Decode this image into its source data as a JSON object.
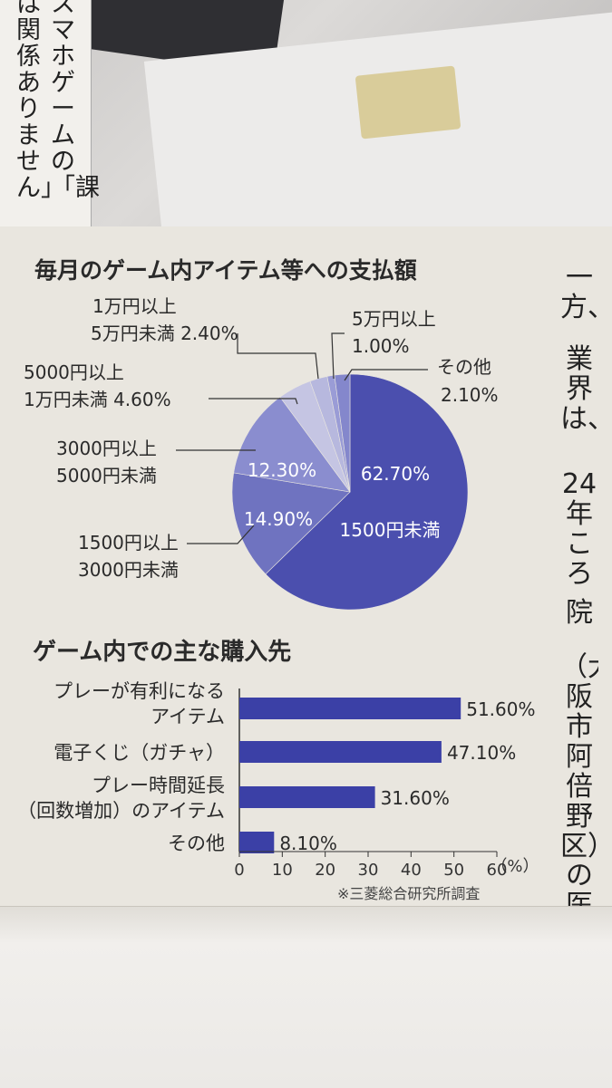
{
  "caption_columns": [
    "スマホゲームの「課",
    "は関係ありません」"
  ],
  "side_text": [
    "一方、",
    "業界は、",
    "24年ころ",
    "院",
    "（大阪市阿倍野区）",
    "の医"
  ],
  "chart_data": [
    {
      "type": "pie",
      "title": "毎月のゲーム内アイテム等への支払額",
      "slices": [
        {
          "label": "1500円未満",
          "value": 62.7,
          "display": "62.70%",
          "color": "#4b4fae"
        },
        {
          "label": "1500円以上 3000円未満",
          "label_lines": [
            "1500円以上",
            "3000円未満"
          ],
          "value": 14.9,
          "display": "14.90%",
          "color": "#6f73c0"
        },
        {
          "label": "3000円以上 5000円未満",
          "label_lines": [
            "3000円以上",
            "5000円未満"
          ],
          "value": 12.3,
          "display": "12.30%",
          "color": "#8a8dcf"
        },
        {
          "label": "5000円以上 1万円未満",
          "label_lines": [
            "5000円以上",
            "1万円未満 4.60%"
          ],
          "value": 4.6,
          "display": "4.60%",
          "color": "#c5c5e3"
        },
        {
          "label": "1万円以上 5万円未満",
          "label_lines": [
            "1万円以上",
            "5万円未満 2.40%"
          ],
          "value": 2.4,
          "display": "2.40%",
          "color": "#b7b8de"
        },
        {
          "label": "5万円以上",
          "label_lines": [
            "5万円以上",
            "1.00%"
          ],
          "value": 1.0,
          "display": "1.00%",
          "color": "#9a9cd6"
        },
        {
          "label": "その他",
          "label_lines": [
            "その他",
            "2.10%"
          ],
          "value": 2.1,
          "display": "2.10%",
          "color": "#8487cc"
        }
      ]
    },
    {
      "type": "bar",
      "orientation": "horizontal",
      "title": "ゲーム内での主な購入先",
      "categories": [
        {
          "label_lines": [
            "プレーが有利になる",
            "アイテム"
          ],
          "value": 51.6,
          "display": "51.60%"
        },
        {
          "label_lines": [
            "電子くじ（ガチャ）"
          ],
          "value": 47.1,
          "display": "47.10%"
        },
        {
          "label_lines": [
            "プレー時間延長",
            "（回数増加）のアイテム"
          ],
          "value": 31.6,
          "display": "31.60%"
        },
        {
          "label_lines": [
            "その他"
          ],
          "value": 8.1,
          "display": "8.10%"
        }
      ],
      "xlim": [
        0,
        60
      ],
      "xticks": [
        0,
        10,
        20,
        30,
        40,
        50,
        60
      ],
      "unit": "（%）",
      "bar_color": "#3b40a6"
    }
  ],
  "source_note": "※三菱総合研究所調査"
}
